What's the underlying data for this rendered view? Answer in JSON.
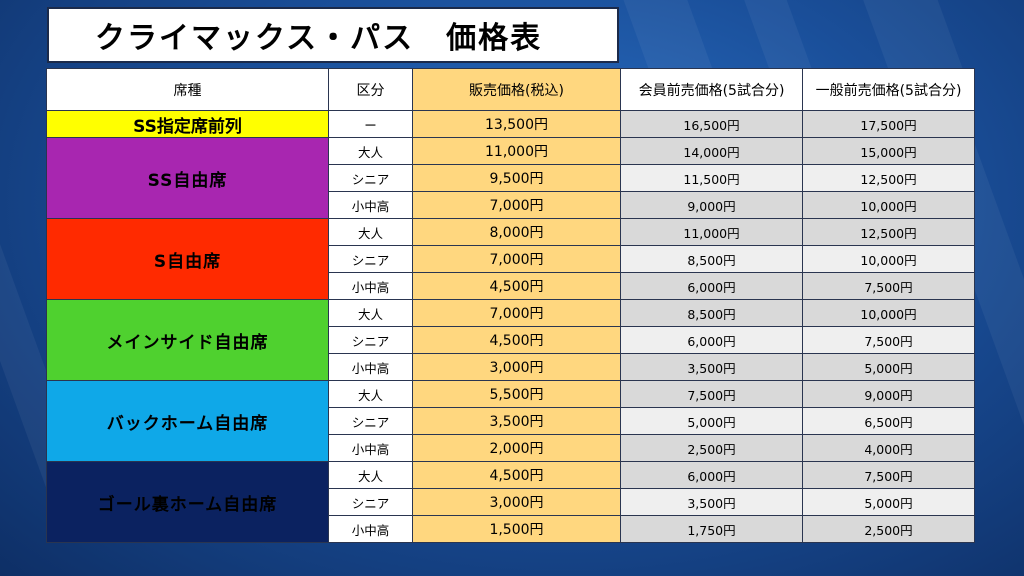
{
  "title": "クライマックス・パス　価格表",
  "headers": {
    "seat": "席種",
    "kubun": "区分",
    "sale": "販売価格(税込)",
    "member": "会員前売価格(5試合分)",
    "general": "一般前売価格(5試合分)"
  },
  "ss_front": {
    "seat": "SS指定席前列",
    "kubun": "ー",
    "sale": "13,500円",
    "member": "16,500円",
    "general": "17,500円"
  },
  "groups": [
    {
      "seat": "SS自由席",
      "color": "#a826b0",
      "rows": [
        {
          "kubun": "大人",
          "sale": "11,000円",
          "member": "14,000円",
          "general": "15,000円"
        },
        {
          "kubun": "シニア",
          "sale": "9,500円",
          "member": "11,500円",
          "general": "12,500円"
        },
        {
          "kubun": "小中高",
          "sale": "7,000円",
          "member": "9,000円",
          "general": "10,000円"
        }
      ]
    },
    {
      "seat": "S自由席",
      "color": "#ff2a00",
      "rows": [
        {
          "kubun": "大人",
          "sale": "8,000円",
          "member": "11,000円",
          "general": "12,500円"
        },
        {
          "kubun": "シニア",
          "sale": "7,000円",
          "member": "8,500円",
          "general": "10,000円"
        },
        {
          "kubun": "小中高",
          "sale": "4,500円",
          "member": "6,000円",
          "general": "7,500円"
        }
      ]
    },
    {
      "seat": "メインサイド自由席",
      "color": "#4fd12f",
      "rows": [
        {
          "kubun": "大人",
          "sale": "7,000円",
          "member": "8,500円",
          "general": "10,000円"
        },
        {
          "kubun": "シニア",
          "sale": "4,500円",
          "member": "6,000円",
          "general": "7,500円"
        },
        {
          "kubun": "小中高",
          "sale": "3,000円",
          "member": "3,500円",
          "general": "5,000円"
        }
      ]
    },
    {
      "seat": "バックホーム自由席",
      "color": "#0fa8e8",
      "rows": [
        {
          "kubun": "大人",
          "sale": "5,500円",
          "member": "7,500円",
          "general": "9,000円"
        },
        {
          "kubun": "シニア",
          "sale": "3,500円",
          "member": "5,000円",
          "general": "6,500円"
        },
        {
          "kubun": "小中高",
          "sale": "2,000円",
          "member": "2,500円",
          "general": "4,000円"
        }
      ]
    },
    {
      "seat": "ゴール裏ホーム自由席",
      "color": "#0b2260",
      "rows": [
        {
          "kubun": "大人",
          "sale": "4,500円",
          "member": "6,000円",
          "general": "7,500円"
        },
        {
          "kubun": "シニア",
          "sale": "3,000円",
          "member": "3,500円",
          "general": "5,000円"
        },
        {
          "kubun": "小中高",
          "sale": "1,500円",
          "member": "1,750円",
          "general": "2,500円"
        }
      ]
    }
  ]
}
